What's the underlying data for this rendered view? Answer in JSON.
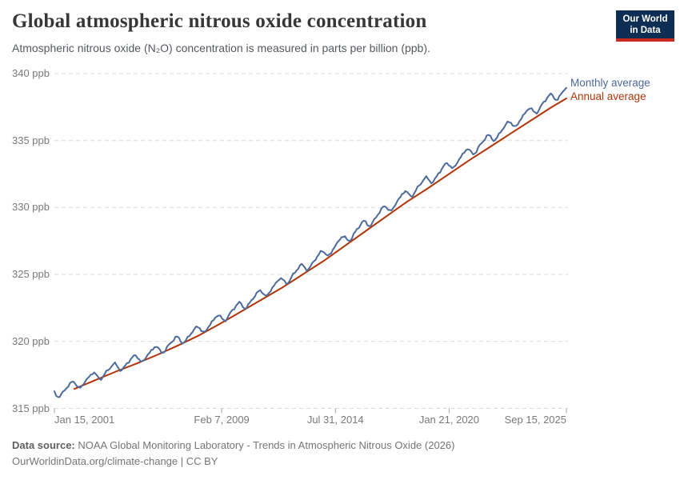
{
  "header": {
    "title": "Global atmospheric nitrous oxide concentration",
    "subtitle": "Atmospheric nitrous oxide (N₂O) concentration is measured in parts per billion (ppb).",
    "logo": {
      "line1": "Our World",
      "line2": "in Data",
      "bg_color": "#0d2d52",
      "accent_color": "#c92a20"
    }
  },
  "legend": [
    {
      "label": "Monthly average",
      "color": "#4c6a9c"
    },
    {
      "label": "Annual average",
      "color": "#b13507"
    }
  ],
  "footer": {
    "datasource_label": "Data source:",
    "datasource_text": " NOAA Global Monitoring Laboratory - Trends in Atmospheric Nitrous Oxide (2026)",
    "citation": "OurWorldinData.org/climate-change | CC BY"
  },
  "chart_data": {
    "type": "line",
    "title": "Global atmospheric nitrous oxide concentration",
    "xlabel": "",
    "ylabel": "ppb",
    "x_range_years": [
      2001.04,
      2025.71
    ],
    "y_range": [
      315,
      340
    ],
    "grid": "horizontal-dashed",
    "grid_color": "#d9d9d9",
    "tick_mark_color": "#a5a7ab",
    "legend_position": "right-of-line-ends",
    "x_ticks": [
      {
        "label": "Jan 15, 2001",
        "year": 2001.04,
        "align": "start"
      },
      {
        "label": "Feb 7, 2009",
        "year": 2009.1,
        "align": "center"
      },
      {
        "label": "Jul 31, 2014",
        "year": 2014.58,
        "align": "center"
      },
      {
        "label": "Jan 21, 2020",
        "year": 2020.06,
        "align": "center"
      },
      {
        "label": "Sep 15, 2025",
        "year": 2025.71,
        "align": "end"
      }
    ],
    "y_ticks": [
      {
        "label": "315 ppb",
        "value": 315
      },
      {
        "label": "320 ppb",
        "value": 320
      },
      {
        "label": "325 ppb",
        "value": 325
      },
      {
        "label": "330 ppb",
        "value": 330
      },
      {
        "label": "335 ppb",
        "value": 335
      },
      {
        "label": "340 ppb",
        "value": 340
      }
    ],
    "series": [
      {
        "name": "Annual average",
        "color": "#b13507",
        "stroke_width": 2,
        "points_year_value": [
          [
            2002,
            316.45
          ],
          [
            2003,
            317.1
          ],
          [
            2004,
            317.75
          ],
          [
            2005,
            318.35
          ],
          [
            2006,
            319.0
          ],
          [
            2007,
            319.7
          ],
          [
            2008,
            320.45
          ],
          [
            2009,
            321.3
          ],
          [
            2010,
            322.2
          ],
          [
            2011,
            323.1
          ],
          [
            2012,
            324.0
          ],
          [
            2013,
            325.0
          ],
          [
            2014,
            326.0
          ],
          [
            2015,
            327.1
          ],
          [
            2016,
            328.2
          ],
          [
            2017,
            329.3
          ],
          [
            2018,
            330.4
          ],
          [
            2019,
            331.4
          ],
          [
            2020,
            332.45
          ],
          [
            2021,
            333.5
          ],
          [
            2022,
            334.5
          ],
          [
            2023,
            335.5
          ],
          [
            2024,
            336.5
          ],
          [
            2025,
            337.5
          ],
          [
            2025.71,
            338.15
          ]
        ]
      },
      {
        "name": "Monthly average",
        "color": "#4c6a9c",
        "stroke_width": 2,
        "derived": {
          "model": "annual_trend_plus_seasonal_cycle",
          "trend_source": "Annual average",
          "start_year": 2001.04,
          "end_year": 2025.71,
          "step_years": 0.08333,
          "lead_ppb_start": 0.25,
          "lead_ppb_growth_per_year": 0.018,
          "seasonal_amplitude_ppb": 0.32,
          "seasonal_phase_years": 0.58,
          "harmonic_amplitude_ppb": 0.1,
          "harmonic_phase_years": 0.35,
          "irregular_amplitude_ppb": 0.05,
          "start_value_ppb": 316.3,
          "end_value_ppb": 338.9
        }
      }
    ]
  }
}
